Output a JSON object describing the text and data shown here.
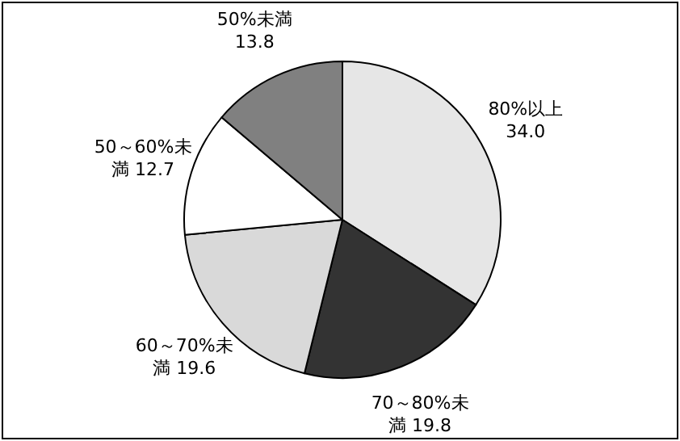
{
  "chart_data": {
    "type": "pie",
    "categories": [
      "80%以上",
      "70～80%未満",
      "60～70%未満",
      "50～60%未満",
      "50%未満"
    ],
    "values": [
      34.0,
      19.8,
      19.6,
      12.7,
      13.8
    ],
    "colors": [
      "#e6e6e6",
      "#333333",
      "#d9d9d9",
      "#ffffff",
      "#808080"
    ],
    "value_labels": [
      "34.0",
      "19.8",
      "19.6",
      "12.7",
      "13.8"
    ]
  }
}
